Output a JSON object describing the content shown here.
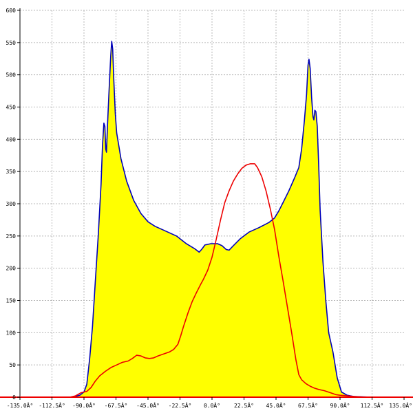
{
  "chart_data": {
    "type": "area",
    "title": "",
    "xlabel": "",
    "ylabel": "",
    "xlim": [
      -135,
      135
    ],
    "ylim": [
      0,
      600
    ],
    "grid": true,
    "x_ticks": [
      -135,
      -112.5,
      -90,
      -67.5,
      -45,
      -22.5,
      0,
      22.5,
      45,
      67.5,
      90,
      112.5,
      135
    ],
    "x_tick_labels": [
      "-135.0Â°",
      "-112.5Â°",
      "-90.0Â°",
      "-67.5Â°",
      "-45.0Â°",
      "-22.5Â°",
      "0.0Â°",
      "22.5Â°",
      "45.0Â°",
      "67.5Â°",
      "90.0Â°",
      "112.5Â°",
      "135.0Â°"
    ],
    "y_ticks": [
      0,
      50,
      100,
      150,
      200,
      250,
      300,
      350,
      400,
      450,
      500,
      550,
      600
    ],
    "y_tick_labels": [
      "0",
      "50",
      "100",
      "150",
      "200",
      "250",
      "300",
      "350",
      "400",
      "450",
      "500",
      "550",
      "600"
    ],
    "colors": {
      "fill": "#ffff00",
      "series_1": "#0000bb",
      "series_2": "#ee0000",
      "grid": "#b8b8b8"
    },
    "series": [
      {
        "color": "#0000bb",
        "filled": true,
        "points": [
          [
            -99,
            0
          ],
          [
            -93,
            3
          ],
          [
            -90,
            8
          ],
          [
            -88,
            20
          ],
          [
            -86,
            60
          ],
          [
            -84,
            110
          ],
          [
            -82,
            180
          ],
          [
            -80,
            250
          ],
          [
            -78,
            330
          ],
          [
            -77,
            390
          ],
          [
            -76,
            425
          ],
          [
            -75.3,
            420
          ],
          [
            -74.7,
            385
          ],
          [
            -74.2,
            380
          ],
          [
            -73.5,
            420
          ],
          [
            -72.5,
            470
          ],
          [
            -71.2,
            530
          ],
          [
            -70.5,
            552
          ],
          [
            -69.8,
            540
          ],
          [
            -69,
            490
          ],
          [
            -68,
            440
          ],
          [
            -67,
            410
          ],
          [
            -64,
            370
          ],
          [
            -60,
            335
          ],
          [
            -55,
            305
          ],
          [
            -50,
            285
          ],
          [
            -45,
            272
          ],
          [
            -40,
            265
          ],
          [
            -33,
            258
          ],
          [
            -25,
            250
          ],
          [
            -18,
            238
          ],
          [
            -12,
            230
          ],
          [
            -9,
            225
          ],
          [
            -7,
            230
          ],
          [
            -5,
            236
          ],
          [
            -1,
            238
          ],
          [
            4,
            238
          ],
          [
            7,
            235
          ],
          [
            10,
            229
          ],
          [
            12,
            228
          ],
          [
            15,
            235
          ],
          [
            20,
            246
          ],
          [
            26,
            256
          ],
          [
            33,
            263
          ],
          [
            40,
            271
          ],
          [
            44,
            278
          ],
          [
            47,
            289
          ],
          [
            50,
            302
          ],
          [
            54,
            320
          ],
          [
            58,
            340
          ],
          [
            61,
            356
          ],
          [
            63,
            385
          ],
          [
            65,
            430
          ],
          [
            66.5,
            470
          ],
          [
            67.5,
            515
          ],
          [
            68.2,
            524
          ],
          [
            69,
            510
          ],
          [
            70,
            465
          ],
          [
            71,
            435
          ],
          [
            71.6,
            430
          ],
          [
            72.3,
            445
          ],
          [
            73,
            443
          ],
          [
            74,
            420
          ],
          [
            75,
            360
          ],
          [
            76,
            290
          ],
          [
            78,
            210
          ],
          [
            80,
            150
          ],
          [
            82,
            100
          ],
          [
            85,
            70
          ],
          [
            88,
            30
          ],
          [
            91,
            8
          ],
          [
            95,
            3
          ],
          [
            100,
            1
          ],
          [
            112,
            0
          ]
        ]
      },
      {
        "color": "#ee0000",
        "filled": false,
        "points": [
          [
            -150,
            0
          ],
          [
            -100,
            0
          ],
          [
            -96,
            2
          ],
          [
            -92,
            7
          ],
          [
            -88,
            9
          ],
          [
            -85,
            15
          ],
          [
            -82,
            25
          ],
          [
            -79,
            33
          ],
          [
            -75,
            40
          ],
          [
            -71,
            46
          ],
          [
            -67,
            50
          ],
          [
            -63,
            54
          ],
          [
            -59,
            56
          ],
          [
            -56,
            60
          ],
          [
            -53,
            65
          ],
          [
            -50,
            64
          ],
          [
            -47,
            61
          ],
          [
            -44,
            60
          ],
          [
            -41,
            61
          ],
          [
            -38,
            64
          ],
          [
            -34,
            67
          ],
          [
            -30,
            70
          ],
          [
            -27,
            74
          ],
          [
            -24,
            82
          ],
          [
            -22,
            95
          ],
          [
            -20,
            110
          ],
          [
            -17,
            130
          ],
          [
            -14,
            148
          ],
          [
            -11,
            162
          ],
          [
            -8,
            175
          ],
          [
            -6,
            183
          ],
          [
            -3,
            197
          ],
          [
            0,
            217
          ],
          [
            3,
            245
          ],
          [
            6,
            275
          ],
          [
            9,
            302
          ],
          [
            12,
            320
          ],
          [
            15,
            335
          ],
          [
            18,
            346
          ],
          [
            21,
            355
          ],
          [
            24,
            360
          ],
          [
            27,
            362
          ],
          [
            30,
            362
          ],
          [
            32,
            356
          ],
          [
            35,
            342
          ],
          [
            38,
            320
          ],
          [
            41,
            292
          ],
          [
            44,
            260
          ],
          [
            47,
            218
          ],
          [
            50,
            180
          ],
          [
            53,
            140
          ],
          [
            56,
            100
          ],
          [
            59,
            58
          ],
          [
            61,
            35
          ],
          [
            63,
            27
          ],
          [
            66,
            21
          ],
          [
            69,
            17
          ],
          [
            72,
            14
          ],
          [
            75,
            12
          ],
          [
            79,
            10
          ],
          [
            83,
            7
          ],
          [
            87,
            4
          ],
          [
            90,
            3
          ],
          [
            95,
            2
          ],
          [
            100,
            1
          ],
          [
            108,
            0
          ],
          [
            150,
            0
          ]
        ]
      }
    ]
  }
}
